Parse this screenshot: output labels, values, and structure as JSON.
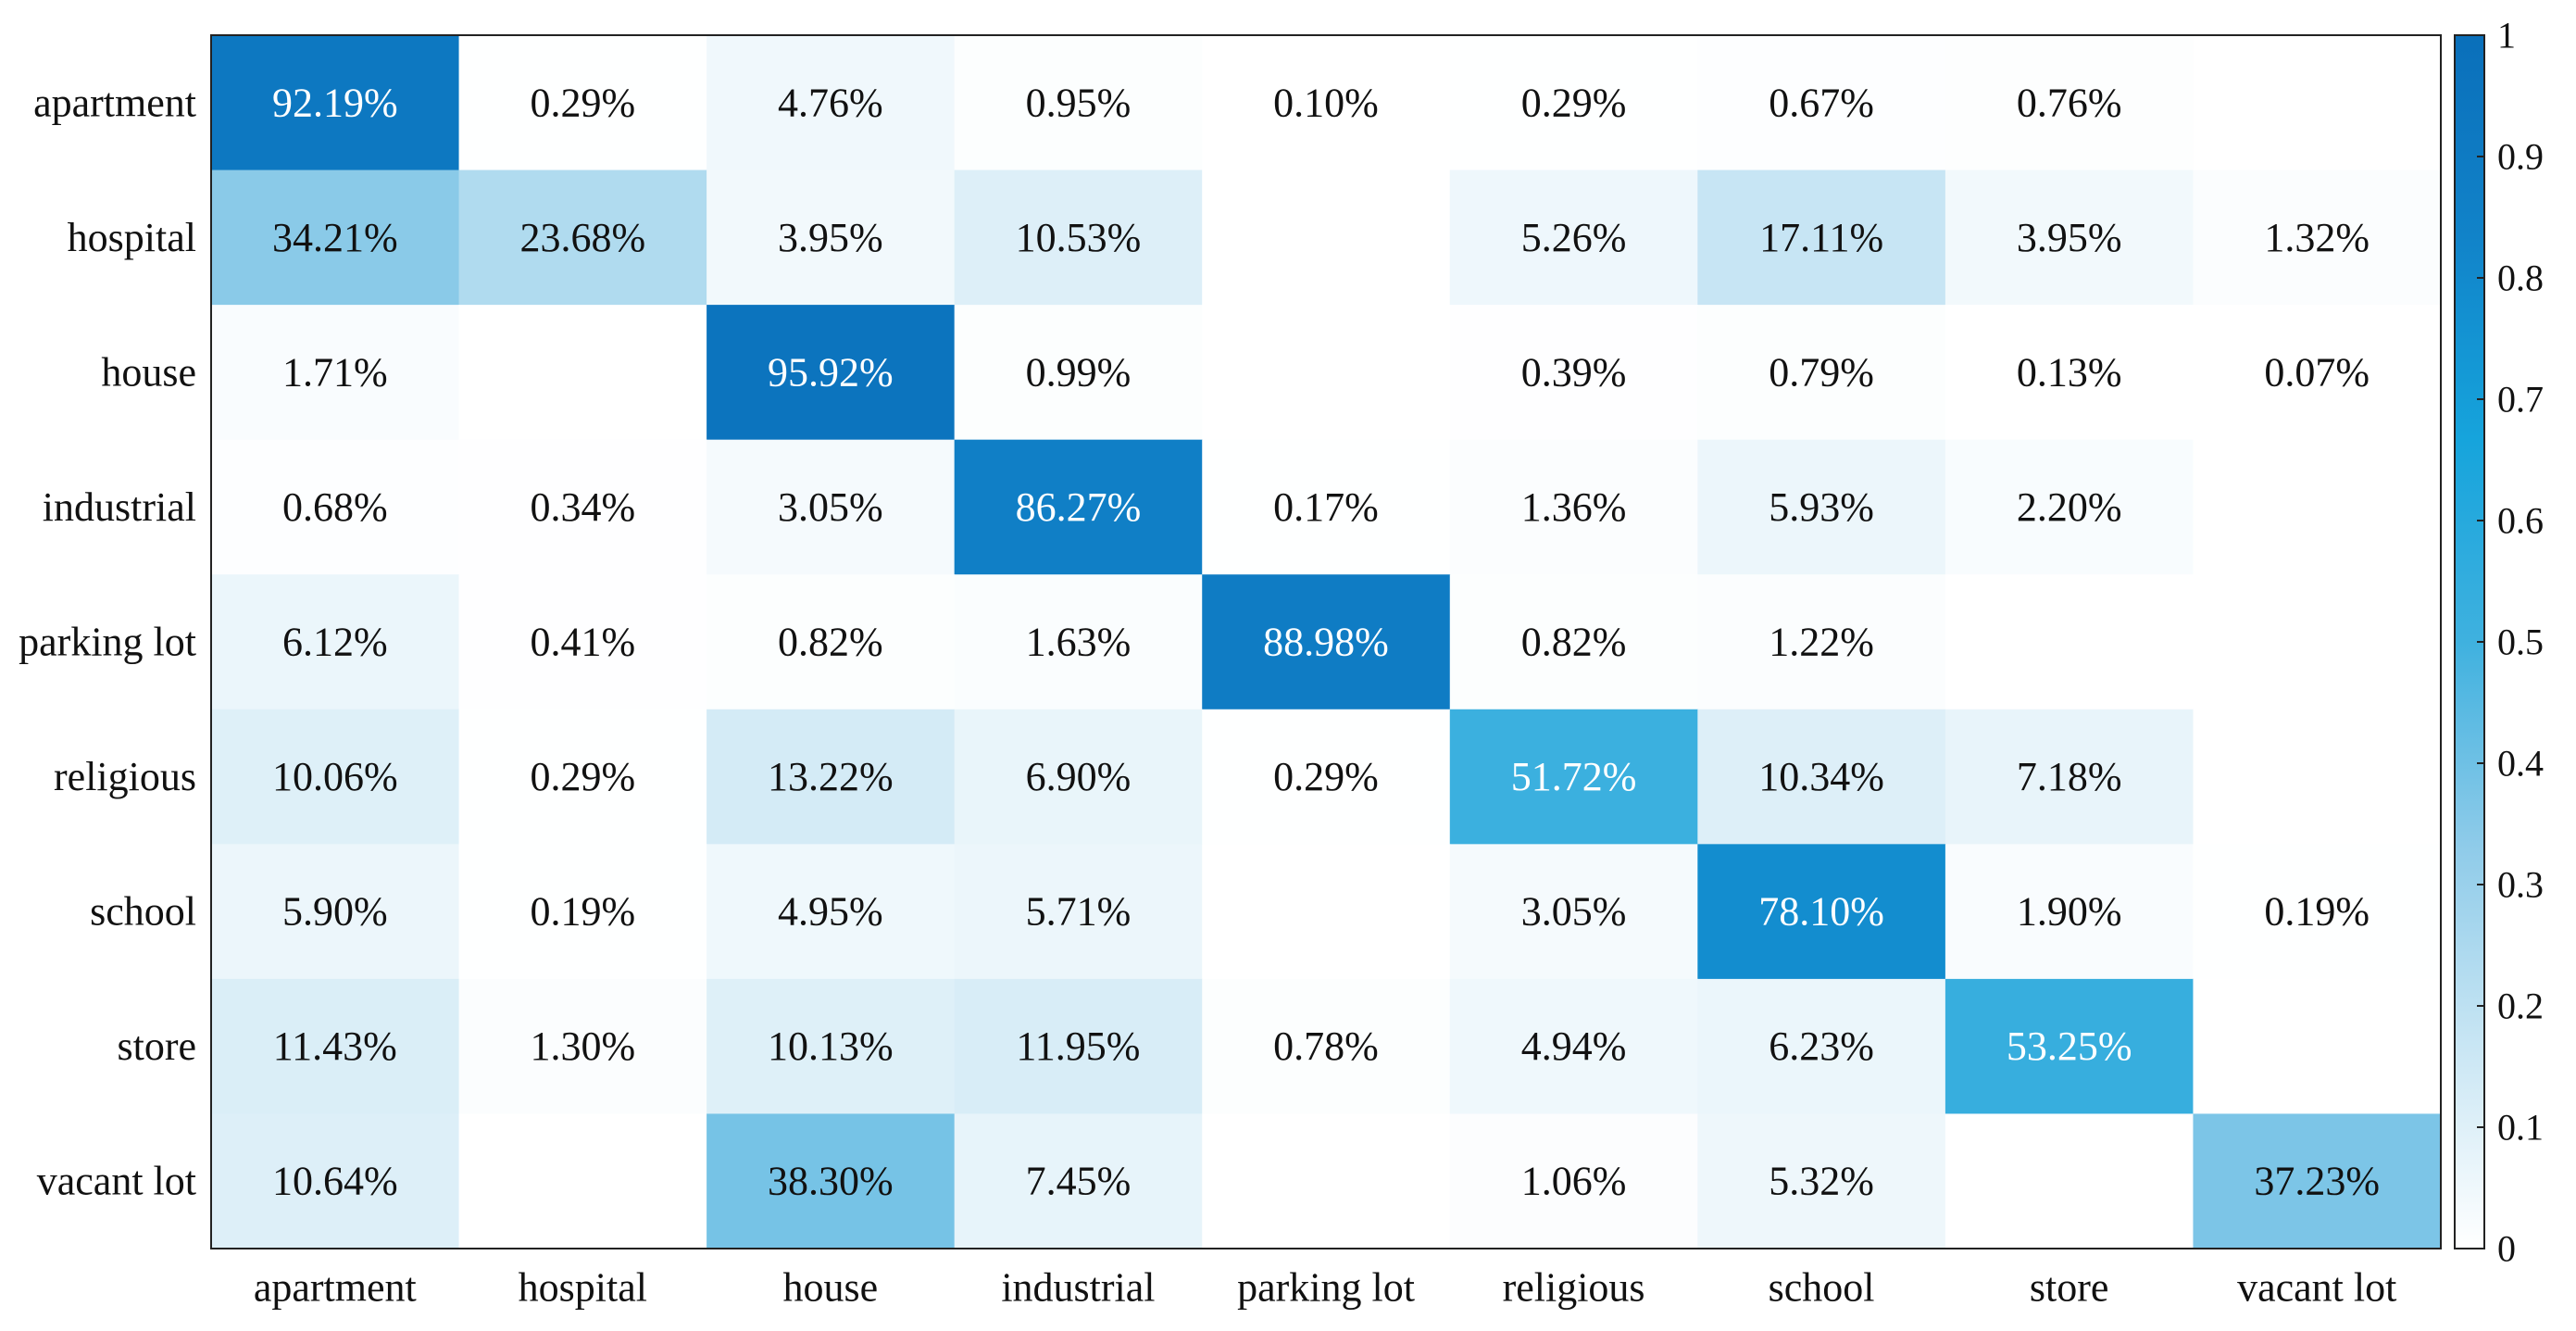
{
  "chart_data": {
    "type": "heatmap",
    "title": "",
    "xlabel": "",
    "ylabel": "",
    "row_labels": [
      "apartment",
      "hospital",
      "house",
      "industrial",
      "parking lot",
      "religious",
      "school",
      "store",
      "vacant lot"
    ],
    "col_labels": [
      "apartment",
      "hospital",
      "house",
      "industrial",
      "parking lot",
      "religious",
      "school",
      "store",
      "vacant lot"
    ],
    "values": [
      [
        92.19,
        0.29,
        4.76,
        0.95,
        0.1,
        0.29,
        0.67,
        0.76,
        null
      ],
      [
        34.21,
        23.68,
        3.95,
        10.53,
        null,
        5.26,
        17.11,
        3.95,
        1.32
      ],
      [
        1.71,
        null,
        95.92,
        0.99,
        null,
        0.39,
        0.79,
        0.13,
        0.07
      ],
      [
        0.68,
        0.34,
        3.05,
        86.27,
        0.17,
        1.36,
        5.93,
        2.2,
        null
      ],
      [
        6.12,
        0.41,
        0.82,
        1.63,
        88.98,
        0.82,
        1.22,
        null,
        null
      ],
      [
        10.06,
        0.29,
        13.22,
        6.9,
        0.29,
        51.72,
        10.34,
        7.18,
        null
      ],
      [
        5.9,
        0.19,
        4.95,
        5.71,
        null,
        3.05,
        78.1,
        1.9,
        0.19
      ],
      [
        11.43,
        1.3,
        10.13,
        11.95,
        0.78,
        4.94,
        6.23,
        53.25,
        null
      ],
      [
        10.64,
        null,
        38.3,
        7.45,
        null,
        1.06,
        5.32,
        null,
        37.23
      ]
    ],
    "value_suffix": "%",
    "colorbar": {
      "range": [
        0,
        1
      ],
      "ticks": [
        0,
        0.1,
        0.2,
        0.3,
        0.4,
        0.5,
        0.6,
        0.7,
        0.8,
        0.9,
        1
      ],
      "tick_labels": [
        "0",
        "0.1",
        "0.2",
        "0.3",
        "0.4",
        "0.5",
        "0.6",
        "0.7",
        "0.8",
        "0.9",
        "1"
      ],
      "colormap": [
        "#ffffff",
        "#c9e6f4",
        "#8ecbe9",
        "#3fb1df",
        "#16a4dc",
        "#1183c9",
        "#0a6fba"
      ]
    },
    "grid": false
  }
}
